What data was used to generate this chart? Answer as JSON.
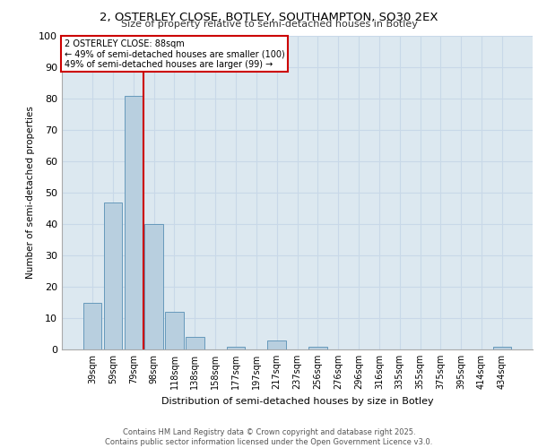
{
  "title": "2, OSTERLEY CLOSE, BOTLEY, SOUTHAMPTON, SO30 2EX",
  "subtitle": "Size of property relative to semi-detached houses in Botley",
  "xlabel": "Distribution of semi-detached houses by size in Botley",
  "ylabel": "Number of semi-detached properties",
  "categories": [
    "39sqm",
    "59sqm",
    "79sqm",
    "98sqm",
    "118sqm",
    "138sqm",
    "158sqm",
    "177sqm",
    "197sqm",
    "217sqm",
    "237sqm",
    "256sqm",
    "276sqm",
    "296sqm",
    "316sqm",
    "335sqm",
    "355sqm",
    "375sqm",
    "395sqm",
    "414sqm",
    "434sqm"
  ],
  "values": [
    15,
    47,
    81,
    40,
    12,
    4,
    0,
    1,
    0,
    3,
    0,
    1,
    0,
    0,
    0,
    0,
    0,
    0,
    0,
    0,
    1
  ],
  "bar_color": "#b8cfdf",
  "bar_edge_color": "#6699bb",
  "annotation_box_text": "2 OSTERLEY CLOSE: 88sqm\n← 49% of semi-detached houses are smaller (100)\n49% of semi-detached houses are larger (99) →",
  "annotation_box_color": "#ffffff",
  "annotation_box_edgecolor": "#cc0000",
  "vline_color": "#cc0000",
  "vline_x_index": 2,
  "ylim": [
    0,
    100
  ],
  "yticks": [
    0,
    10,
    20,
    30,
    40,
    50,
    60,
    70,
    80,
    90,
    100
  ],
  "grid_color": "#c8d8e8",
  "background_color": "#dce8f0",
  "fig_background": "#ffffff",
  "footer": "Contains HM Land Registry data © Crown copyright and database right 2025.\nContains public sector information licensed under the Open Government Licence v3.0."
}
